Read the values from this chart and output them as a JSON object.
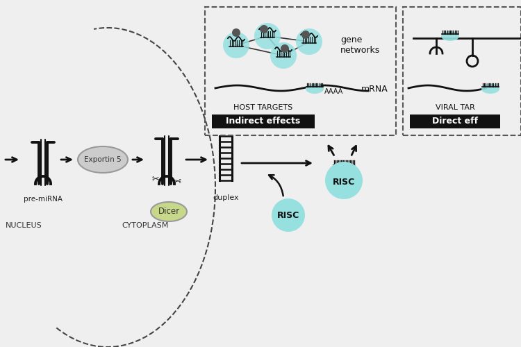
{
  "bg_color": "#efefef",
  "stem_color": "#111111",
  "risc_color": "#96e0e0",
  "dicer_color": "#c8d88a",
  "exportin_color": "#cccccc",
  "arrow_color": "#111111",
  "nucleus_label": "NUCLEUS",
  "cytoplasm_label": "CYTOPLASM",
  "pre_mirna_label": "pre-miRNA",
  "dicer_label": "Dicer",
  "exportin_label": "Exportin 5",
  "duplex_label": "duplex",
  "risc_label": "RISC",
  "mrna_label": "mRNA",
  "gene_networks_label": "gene\nnetworks",
  "aaaa_label": "AAAA",
  "indirect_label": "Indirect effects",
  "host_targets_label": "HOST TARGETS",
  "direct_label": "Direct eff",
  "viral_targets_label": "VIRAL TAR"
}
